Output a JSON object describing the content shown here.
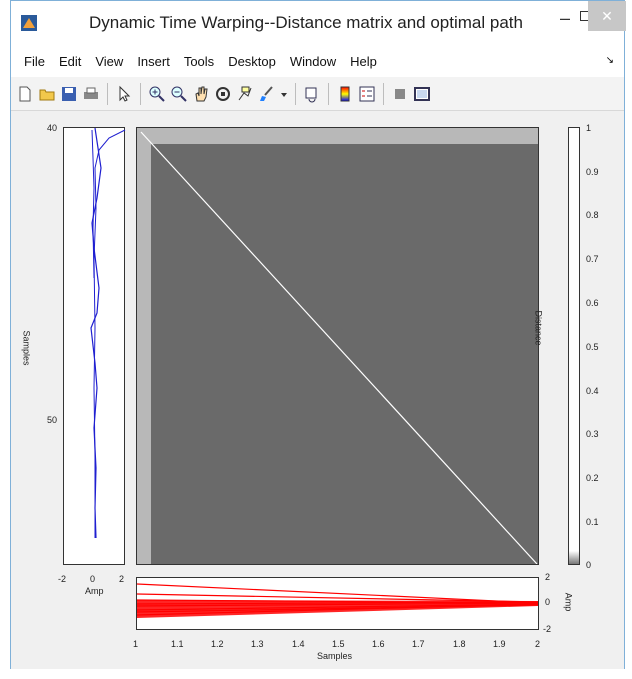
{
  "window": {
    "title": "Dynamic Time Warping--Distance matrix and optimal path",
    "min_glyph": "–",
    "max_glyph": "☐",
    "close_glyph": "✕"
  },
  "menu": {
    "items": [
      "File",
      "Edit",
      "View",
      "Insert",
      "Tools",
      "Desktop",
      "Window",
      "Help"
    ],
    "overflow_glyph": "↘"
  },
  "toolbar": {
    "icons": [
      "new-figure-icon",
      "open-file-icon",
      "save-icon",
      "print-icon",
      "pointer-icon",
      "zoom-in-icon",
      "zoom-out-icon",
      "pan-icon",
      "rotate-3d-icon",
      "data-cursor-icon",
      "brush-icon",
      "brush-dropdown-icon",
      "link-plot-icon",
      "colorbar-icon",
      "legend-icon",
      "hide-plot-tools-icon",
      "show-plot-tools-icon"
    ]
  },
  "left_plot": {
    "y_ticks": [
      "40",
      "50"
    ],
    "x_ticks": [
      "-2",
      "0",
      "2"
    ],
    "ylabel": "Samples",
    "xlabel": "Amp",
    "line_color": "#1f1fd0"
  },
  "matrix": {
    "ylabel": "Distance",
    "fill_color": "#6a6a6a",
    "band_color": "#b8b8b8",
    "path_color": "#ffffff"
  },
  "colorbar": {
    "ticks": [
      "1",
      "0.9",
      "0.8",
      "0.7",
      "0.6",
      "0.5",
      "0.4",
      "0.3",
      "0.2",
      "0.1",
      "0"
    ]
  },
  "bottom_plot": {
    "x_ticks": [
      "1",
      "1.1",
      "1.2",
      "1.3",
      "1.4",
      "1.5",
      "1.6",
      "1.7",
      "1.8",
      "1.9",
      "2"
    ],
    "y_ticks": [
      "2",
      "0",
      "-2"
    ],
    "xlabel": "Samples",
    "ylabel": "Amp",
    "line_color": "#ff0000"
  }
}
